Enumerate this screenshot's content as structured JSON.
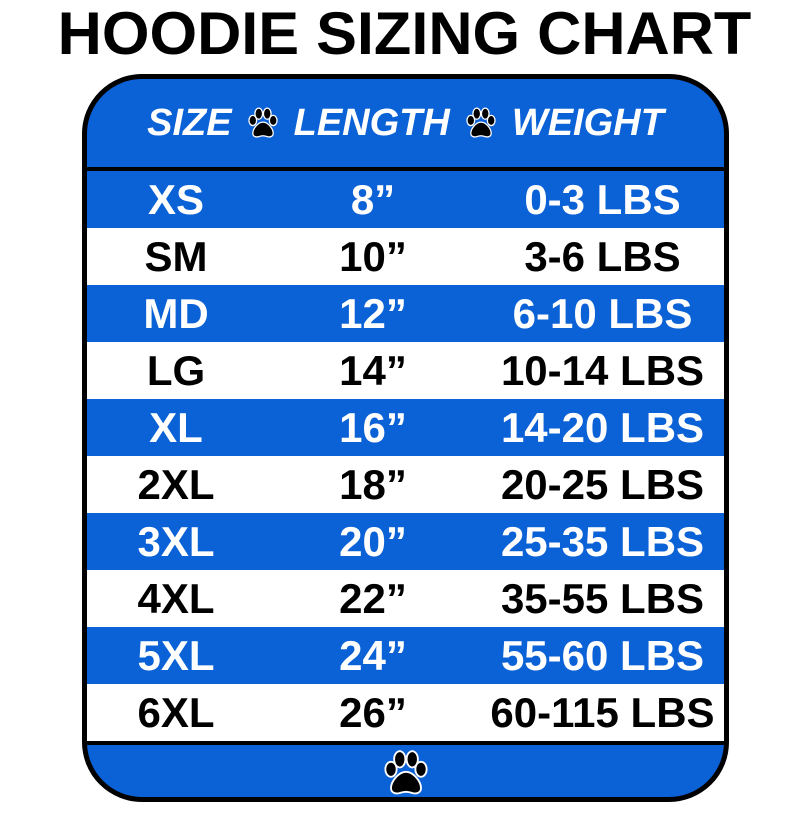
{
  "title": "HOODIE SIZING CHART",
  "colors": {
    "blue": "#0b61d6",
    "white": "#ffffff",
    "black": "#000000"
  },
  "header": {
    "size": "SIZE",
    "length": "LENGTH",
    "weight": "WEIGHT",
    "separator_icon": "paw-icon"
  },
  "rows": [
    {
      "size": "XS",
      "length": "8”",
      "weight": "0-3 LBS"
    },
    {
      "size": "SM",
      "length": "10”",
      "weight": "3-6 LBS"
    },
    {
      "size": "MD",
      "length": "12”",
      "weight": "6-10 LBS"
    },
    {
      "size": "LG",
      "length": "14”",
      "weight": "10-14 LBS"
    },
    {
      "size": "XL",
      "length": "16”",
      "weight": "14-20 LBS"
    },
    {
      "size": "2XL",
      "length": "18”",
      "weight": "20-25 LBS"
    },
    {
      "size": "3XL",
      "length": "20”",
      "weight": "25-35 LBS"
    },
    {
      "size": "4XL",
      "length": "22”",
      "weight": "35-55 LBS"
    },
    {
      "size": "5XL",
      "length": "24”",
      "weight": "55-60 LBS"
    },
    {
      "size": "6XL",
      "length": "26”",
      "weight": "60-115 LBS"
    }
  ],
  "footer": {
    "icon": "paw-icon"
  }
}
